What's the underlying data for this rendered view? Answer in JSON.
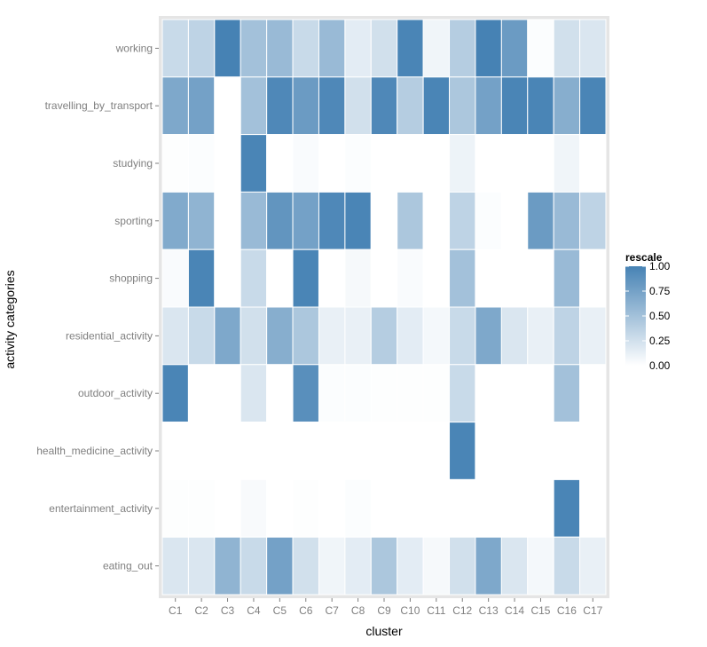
{
  "chart_data": {
    "type": "heatmap",
    "xlabel": "cluster",
    "ylabel": "activity categories",
    "x": [
      "C1",
      "C2",
      "C3",
      "C4",
      "C5",
      "C6",
      "C7",
      "C8",
      "C9",
      "C10",
      "C11",
      "C12",
      "C13",
      "C14",
      "C15",
      "C16",
      "C17"
    ],
    "y": [
      "working",
      "travelling_by_transport",
      "studying",
      "sporting",
      "shopping",
      "residential_activity",
      "outdoor_activity",
      "health_medicine_activity",
      "entertainment_activity",
      "eating_out"
    ],
    "values": [
      [
        0.3,
        0.35,
        1.0,
        0.5,
        0.55,
        0.3,
        0.55,
        0.15,
        0.25,
        0.98,
        0.08,
        0.4,
        1.0,
        0.8,
        0.02,
        0.25,
        0.2
      ],
      [
        0.7,
        0.75,
        0.0,
        0.5,
        0.95,
        0.8,
        0.95,
        0.25,
        0.95,
        0.4,
        0.98,
        0.45,
        0.75,
        0.98,
        0.98,
        0.65,
        0.98
      ],
      [
        0.01,
        0.02,
        0.0,
        0.98,
        0.0,
        0.03,
        0.0,
        0.02,
        0.0,
        0.0,
        0.0,
        0.1,
        0.0,
        0.0,
        0.0,
        0.08,
        0.0
      ],
      [
        0.68,
        0.6,
        0.0,
        0.55,
        0.85,
        0.75,
        0.95,
        0.98,
        0.0,
        0.45,
        0.0,
        0.35,
        0.02,
        0.0,
        0.8,
        0.55,
        0.35
      ],
      [
        0.03,
        0.98,
        0.0,
        0.3,
        0.0,
        0.98,
        0.0,
        0.05,
        0.0,
        0.03,
        0.0,
        0.5,
        0.0,
        0.0,
        0.0,
        0.55,
        0.0
      ],
      [
        0.2,
        0.3,
        0.7,
        0.25,
        0.65,
        0.45,
        0.12,
        0.12,
        0.4,
        0.15,
        0.06,
        0.3,
        0.7,
        0.2,
        0.12,
        0.35,
        0.12
      ],
      [
        0.98,
        0.0,
        0.0,
        0.2,
        0.0,
        0.9,
        0.02,
        0.02,
        0.01,
        0.01,
        0.01,
        0.3,
        0.0,
        0.0,
        0.0,
        0.5,
        0.0
      ],
      [
        0.0,
        0.0,
        0.0,
        0.0,
        0.0,
        0.0,
        0.0,
        0.0,
        0.0,
        0.0,
        0.0,
        0.98,
        0.0,
        0.0,
        0.0,
        0.0,
        0.0
      ],
      [
        0.01,
        0.01,
        0.0,
        0.04,
        0.0,
        0.01,
        0.0,
        0.02,
        0.0,
        0.0,
        0.0,
        0.0,
        0.0,
        0.0,
        0.0,
        0.98,
        0.0
      ],
      [
        0.2,
        0.2,
        0.6,
        0.3,
        0.75,
        0.25,
        0.08,
        0.15,
        0.45,
        0.15,
        0.05,
        0.25,
        0.7,
        0.2,
        0.06,
        0.3,
        0.12
      ]
    ],
    "legend": {
      "title": "rescale",
      "breaks": [
        1.0,
        0.75,
        0.5,
        0.25,
        0.0
      ],
      "labels": [
        "1.00",
        "0.75",
        "0.50",
        "0.25",
        "0.00"
      ],
      "low_color": "#ffffff",
      "high_color": "#4682b4",
      "placement": "right"
    },
    "value_range": [
      0,
      1
    ],
    "grid": true
  },
  "colors": {
    "panel_background": "#e5e5e5",
    "tile_border": "#ffffff"
  }
}
